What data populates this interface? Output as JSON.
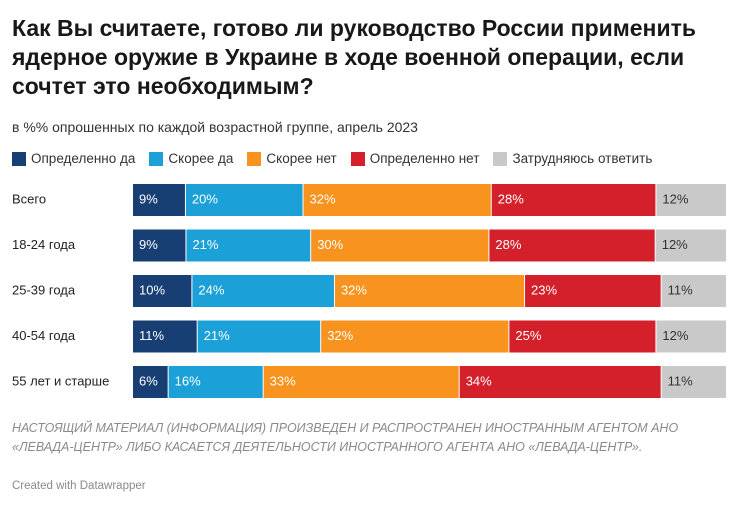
{
  "chart_data": {
    "type": "stacked-bar",
    "title": "Как Вы считаете, готово ли руководство России применить ядерное оружие в Украине в ходе военной операции, если сочтет это необходимым?",
    "subtitle": "в %% опрошенных по каждой возрастной группе, апрель 2023",
    "categories": [
      "Всего",
      "18-24 года",
      "25-39 года",
      "40-54 года",
      "55 лет и старше"
    ],
    "series": [
      {
        "name": "Определенно да",
        "color": "#173f73",
        "label_color": "#ffffff",
        "values": [
          9,
          9,
          10,
          11,
          6
        ],
        "value_labels": [
          "9%",
          "9%",
          "10%",
          "11%",
          "6%"
        ]
      },
      {
        "name": "Скорее да",
        "color": "#1ba1d8",
        "label_color": "#ffffff",
        "values": [
          20,
          21,
          24,
          21,
          16
        ],
        "value_labels": [
          "20%",
          "21%",
          "24%",
          "21%",
          "16%"
        ]
      },
      {
        "name": "Скорее нет",
        "color": "#f7931e",
        "label_color": "#ffffff",
        "values": [
          32,
          30,
          32,
          32,
          33
        ],
        "value_labels": [
          "32%",
          "30%",
          "32%",
          "32%",
          "33%"
        ]
      },
      {
        "name": "Определенно нет",
        "color": "#d4202b",
        "label_color": "#ffffff",
        "values": [
          28,
          28,
          23,
          25,
          34
        ],
        "value_labels": [
          "28%",
          "28%",
          "23%",
          "25%",
          "34%"
        ]
      },
      {
        "name": "Затрудняюсь ответить",
        "color": "#c9c9c9",
        "label_color": "#333333",
        "values": [
          12,
          12,
          11,
          12,
          11
        ],
        "value_labels": [
          "12%",
          "12%",
          "11%",
          "12%",
          "11%"
        ]
      }
    ],
    "notice": "НАСТОЯЩИЙ МАТЕРИАЛ (ИНФОРМАЦИЯ) ПРОИЗВЕДЕН И РАСПРОСТРАНЕН ИНОСТРАННЫМ АГЕНТОМ АНО «ЛЕВАДА-ЦЕНТР» ЛИБО КАСАЕТСЯ ДЕЯТЕЛЬНОСТИ ИНОСТРАННОГО АГЕНТА АНО «ЛЕВАДА-ЦЕНТР».",
    "credit": "Created with Datawrapper"
  }
}
